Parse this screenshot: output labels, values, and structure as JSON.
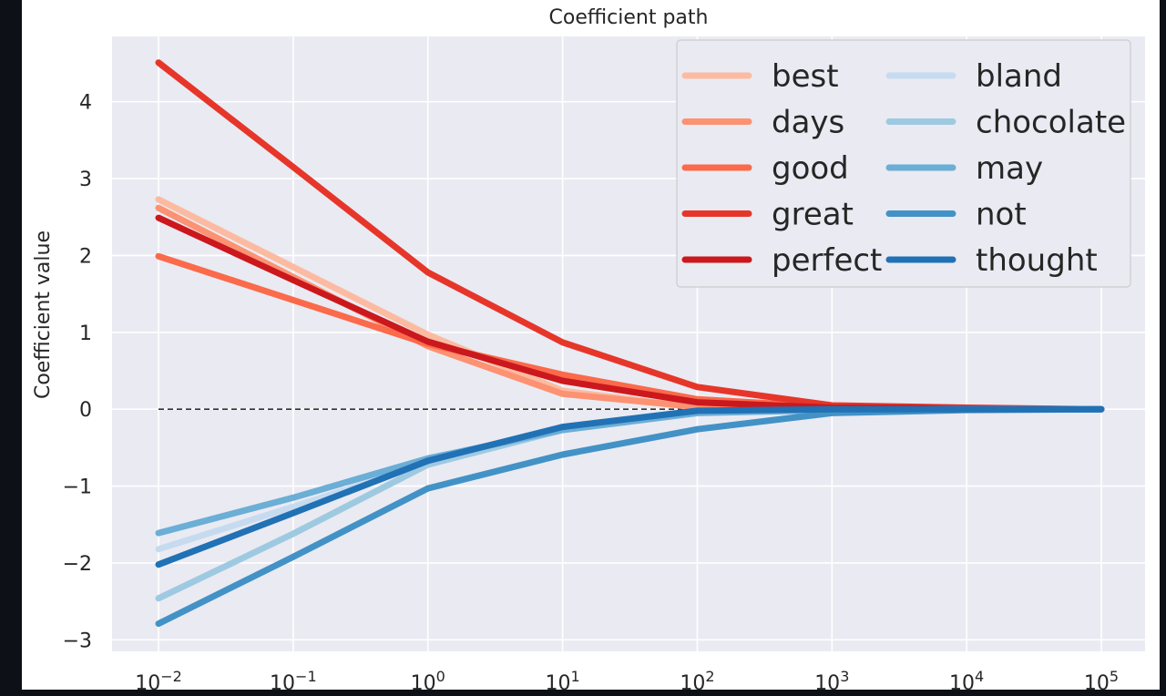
{
  "chart_data": {
    "type": "line",
    "title": "Coefficient path",
    "xlabel": "",
    "ylabel": "Coefficient value",
    "x_scale": "log",
    "x": [
      0.01,
      0.1,
      1,
      10,
      100,
      1000,
      10000,
      100000
    ],
    "x_tick_labels": [
      {
        "base": "10",
        "exp": "−2"
      },
      {
        "base": "10",
        "exp": "−1"
      },
      {
        "base": "10",
        "exp": "0"
      },
      {
        "base": "10",
        "exp": "1"
      },
      {
        "base": "10",
        "exp": "2"
      },
      {
        "base": "10",
        "exp": "3"
      },
      {
        "base": "10",
        "exp": "4"
      },
      {
        "base": "10",
        "exp": "5"
      }
    ],
    "y_ticks": [
      -3,
      -2,
      -1,
      0,
      1,
      2,
      3,
      4
    ],
    "y_tick_labels": [
      "−3",
      "−2",
      "−1",
      "0",
      "1",
      "2",
      "3",
      "4"
    ],
    "xlim": [
      0.01,
      100000
    ],
    "ylim": [
      -3.15,
      4.85
    ],
    "grid": true,
    "zero_line": true,
    "legend_position": "top-right",
    "legend_columns": 2,
    "series": [
      {
        "name": "best",
        "color": "#fcbba1",
        "values": [
          2.73,
          1.85,
          0.97,
          0.24,
          0.02,
          0.01,
          0.01,
          0.0
        ]
      },
      {
        "name": "days",
        "color": "#fc9272",
        "values": [
          2.62,
          1.72,
          0.82,
          0.2,
          0.03,
          0.01,
          0.01,
          0.0
        ]
      },
      {
        "name": "good",
        "color": "#fb6a4a",
        "values": [
          1.99,
          1.42,
          0.85,
          0.45,
          0.13,
          0.03,
          0.01,
          0.0
        ]
      },
      {
        "name": "great",
        "color": "#e6362a",
        "values": [
          4.51,
          3.15,
          1.78,
          0.87,
          0.29,
          0.05,
          0.02,
          0.0
        ]
      },
      {
        "name": "perfect",
        "color": "#cb181d",
        "values": [
          2.49,
          1.68,
          0.88,
          0.37,
          0.09,
          0.02,
          0.01,
          0.0
        ]
      },
      {
        "name": "bland",
        "color": "#c6dbef",
        "values": [
          -1.82,
          -1.27,
          -0.7,
          -0.25,
          -0.04,
          -0.01,
          0.0,
          0.0
        ]
      },
      {
        "name": "chocolate",
        "color": "#9ecae1",
        "values": [
          -2.46,
          -1.62,
          -0.72,
          -0.27,
          -0.04,
          -0.01,
          0.0,
          0.0
        ]
      },
      {
        "name": "may",
        "color": "#6baed6",
        "values": [
          -1.61,
          -1.15,
          -0.64,
          -0.27,
          -0.05,
          -0.01,
          0.0,
          0.0
        ]
      },
      {
        "name": "not",
        "color": "#4292c6",
        "values": [
          -2.79,
          -1.92,
          -1.03,
          -0.59,
          -0.26,
          -0.05,
          -0.01,
          0.0
        ]
      },
      {
        "name": "thought",
        "color": "#2171b5",
        "values": [
          -2.02,
          -1.35,
          -0.67,
          -0.23,
          -0.02,
          0.0,
          0.0,
          0.0
        ]
      }
    ]
  }
}
